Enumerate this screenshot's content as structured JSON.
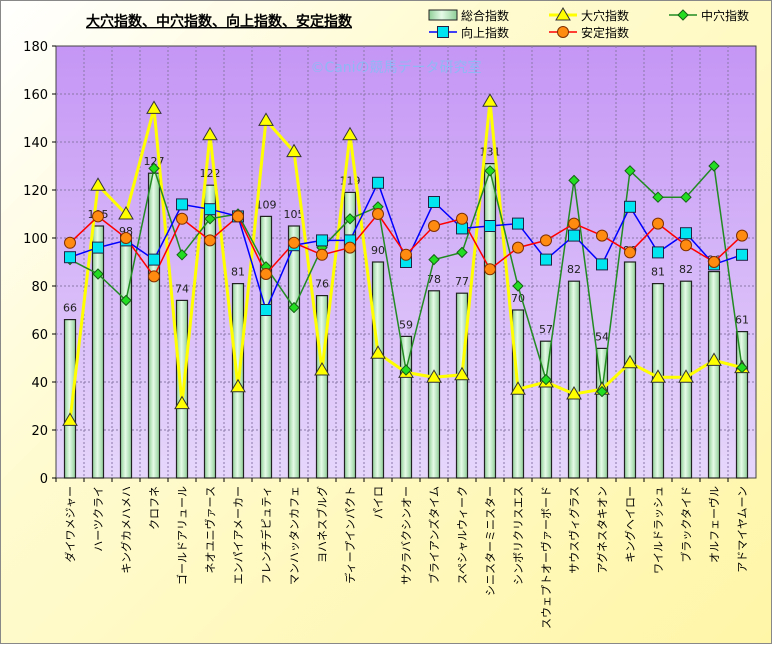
{
  "chart_data": {
    "type": "bar+line",
    "title": "大穴指数、中穴指数、向上指数、安定指数",
    "watermark": "©Caniの競馬データ研究室",
    "ylim": [
      0,
      180
    ],
    "yticks": [
      0,
      20,
      40,
      60,
      80,
      100,
      120,
      140,
      160,
      180
    ],
    "grid": true,
    "legend_position": "top-right",
    "categories": [
      "ダイワメジャー",
      "ハーツクライ",
      "キングカメハメハ",
      "クロフネ",
      "ゴールドアリュール",
      "ネオユニヴァース",
      "エンパイアメーカー",
      "フレンチデピュティ",
      "マンハッタンカフェ",
      "ヨハネスブルグ",
      "ディープインパクト",
      "パイロ",
      "サクラバクシンオー",
      "ブライアンズタイム",
      "スペシャルウィーク",
      "シニスターミニスター",
      "シンボリクリスエス",
      "スウェプトオーヴァーボード",
      "サウスヴィグラス",
      "アグネスタキオン",
      "キングヘイロー",
      "ワイルドラッシュ",
      "ブラックタイド",
      "オルフェーヴル",
      "アドマイヤムーン"
    ],
    "bars": {
      "name": "総合指数",
      "color": "#b8ecc0",
      "values": [
        66,
        105,
        98,
        127,
        74,
        122,
        81,
        109,
        105,
        76,
        119,
        90,
        59,
        78,
        77,
        131,
        70,
        57,
        82,
        54,
        90,
        81,
        82,
        86,
        61
      ]
    },
    "series": [
      {
        "name": "大穴指数",
        "color": "#ffff00",
        "marker": "triangle",
        "values": [
          24,
          122,
          110,
          154,
          31,
          143,
          38,
          149,
          136,
          45,
          143,
          52,
          44,
          42,
          43,
          157,
          37,
          40,
          35,
          37,
          48,
          42,
          42,
          49,
          46
        ]
      },
      {
        "name": "中穴指数",
        "color": "#228b22",
        "marker": "diamond",
        "values": [
          91,
          85,
          74,
          129,
          93,
          108,
          110,
          88,
          71,
          96,
          108,
          113,
          45,
          91,
          94,
          128,
          80,
          41,
          124,
          36,
          128,
          117,
          117,
          130,
          46
        ]
      },
      {
        "name": "向上指数",
        "color": "#0000ff",
        "marker": "square",
        "values": [
          92,
          96,
          99,
          91,
          114,
          112,
          109,
          70,
          97,
          99,
          99,
          123,
          90,
          115,
          104,
          105,
          106,
          91,
          101,
          89,
          113,
          94,
          102,
          89,
          93
        ]
      },
      {
        "name": "安定指数",
        "color": "#ff0000",
        "marker": "circle",
        "values": [
          98,
          109,
          100,
          84,
          108,
          99,
          109,
          85,
          98,
          93,
          96,
          110,
          93,
          105,
          108,
          87,
          96,
          99,
          106,
          101,
          94,
          106,
          97,
          90,
          101
        ]
      }
    ]
  }
}
